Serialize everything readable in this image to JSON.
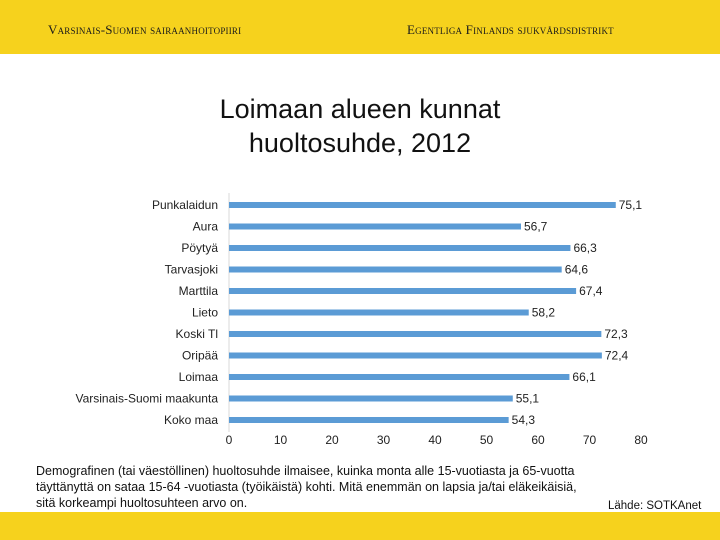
{
  "header": {
    "left": "Varsinais-Suomen sairaanhoitopiiri",
    "right": "Egentliga Finlands sjukvårdsdistrikt"
  },
  "colors": {
    "band": "#f6d21d",
    "bar": "#5b9bd5"
  },
  "chart_data": {
    "type": "bar",
    "orientation": "horizontal",
    "title_lines": [
      "Loimaan alueen kunnat",
      "huoltosuhde, 2012"
    ],
    "categories": [
      "Punkalaidun",
      "Aura",
      "Pöytyä",
      "Tarvasjoki",
      "Marttila",
      "Lieto",
      "Koski Tl",
      "Oripää",
      "Loimaa",
      "Varsinais-Suomi maakunta",
      "Koko maa"
    ],
    "values": [
      75.1,
      56.7,
      66.3,
      64.6,
      67.4,
      58.2,
      72.3,
      72.4,
      66.1,
      55.1,
      54.3
    ],
    "value_labels": [
      "75,1",
      "56,7",
      "66,3",
      "64,6",
      "67,4",
      "58,2",
      "72,3",
      "72,4",
      "66,1",
      "55,1",
      "54,3"
    ],
    "xlim": [
      0,
      80
    ],
    "xticks": [
      0,
      10,
      20,
      30,
      40,
      50,
      60,
      70,
      80
    ],
    "xtick_labels": [
      "0",
      "10",
      "20",
      "30",
      "40",
      "50",
      "60",
      "70",
      "80"
    ],
    "grid": false,
    "legend": "none"
  },
  "footnote": "Demografinen (tai väestöllinen) huoltosuhde ilmaisee, kuinka monta alle 15-vuotiasta ja 65-vuotta täyttänyttä on sataa 15-64 -vuotiasta (työikäistä) kohti. Mitä enemmän on lapsia ja/tai eläkeikäisiä, sitä korkeampi huoltosuhteen arvo on.",
  "source": "Lähde: SOTKAnet"
}
